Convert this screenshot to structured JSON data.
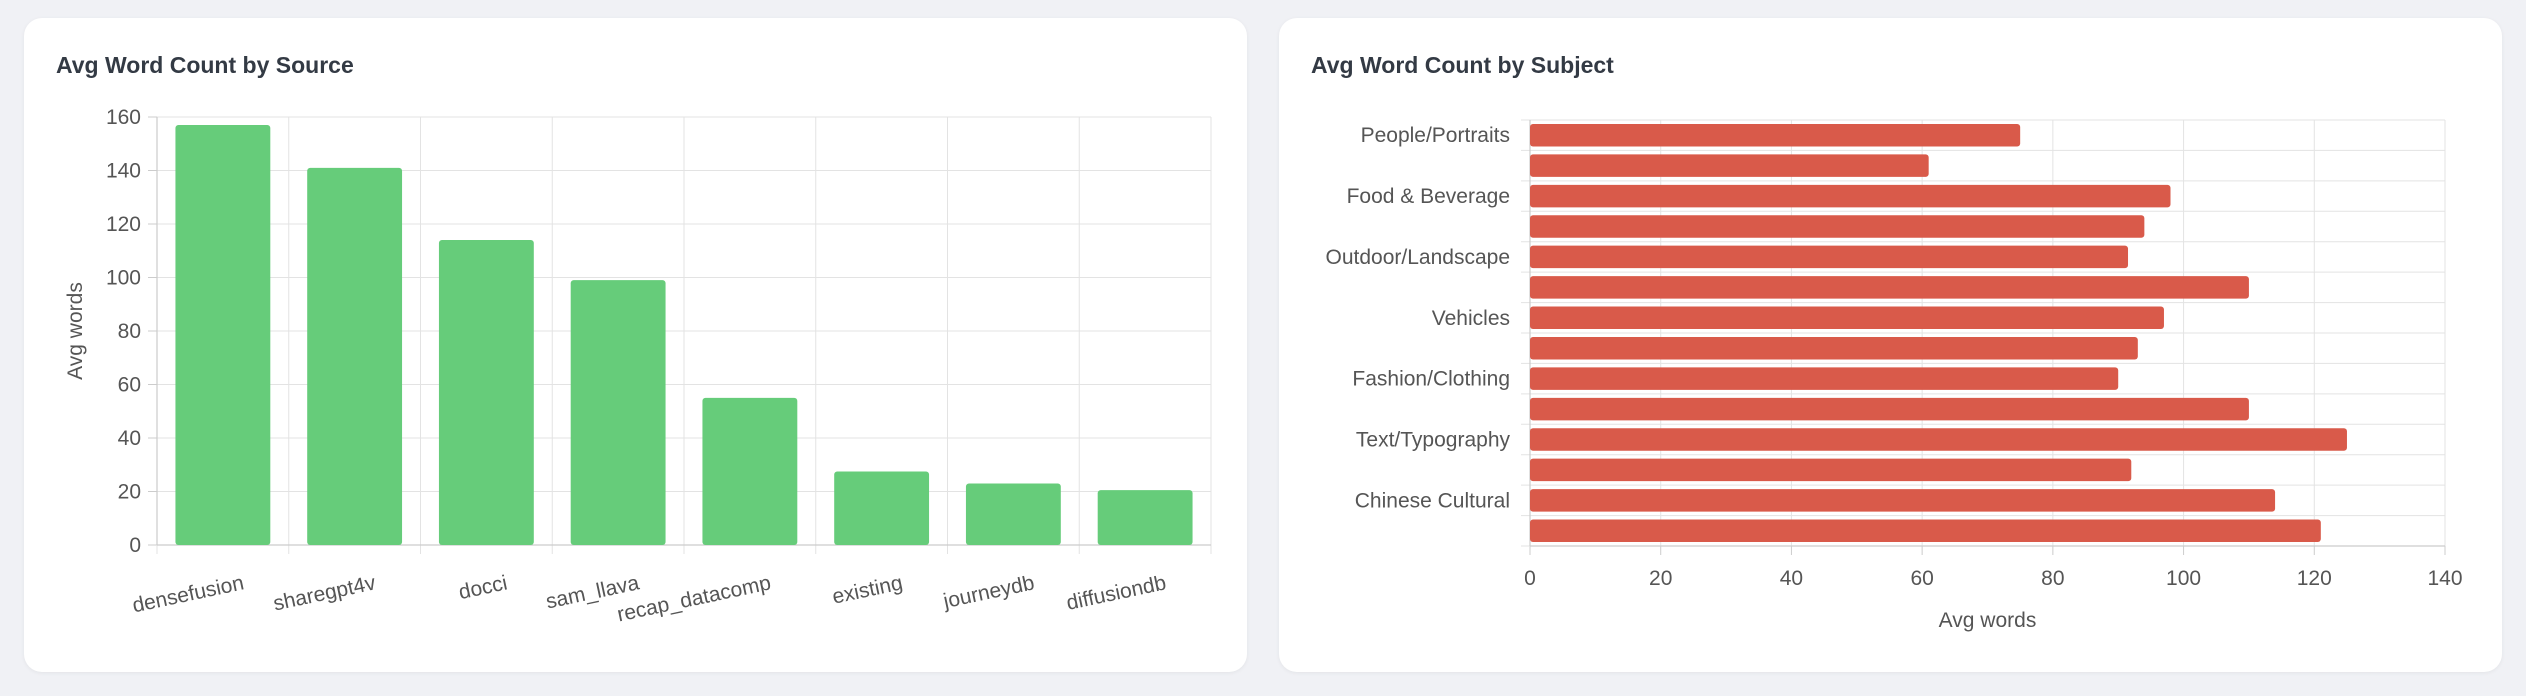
{
  "cards": [
    {
      "title": "Avg Word Count by Source"
    },
    {
      "title": "Avg Word Count by Subject"
    }
  ],
  "chart_data": [
    {
      "type": "bar",
      "title": "Avg Word Count by Source",
      "xlabel": "",
      "ylabel": "Avg words",
      "ylim": [
        0,
        160
      ],
      "yticks": [
        0,
        20,
        40,
        60,
        80,
        100,
        120,
        140,
        160
      ],
      "categories": [
        "densefusion",
        "sharegpt4v",
        "docci",
        "sam_llava",
        "recap_datacomp",
        "existing",
        "journeydb",
        "diffusiondb"
      ],
      "values": [
        157,
        141,
        114,
        99,
        55,
        27.5,
        23,
        20.5
      ],
      "color": "#66cc7a",
      "grid": true
    },
    {
      "type": "bar",
      "orientation": "horizontal",
      "title": "Avg Word Count by Subject",
      "xlabel": "Avg words",
      "ylabel": "",
      "xlim": [
        0,
        140
      ],
      "xticks": [
        0,
        20,
        40,
        60,
        80,
        100,
        120,
        140
      ],
      "categories": [
        "People/Portraits",
        "",
        "Food & Beverage",
        "",
        "Outdoor/Landscape",
        "",
        "Vehicles",
        "",
        "Fashion/Clothing",
        "",
        "Text/Typography",
        "",
        "Chinese Cultural",
        ""
      ],
      "values": [
        75,
        61,
        98,
        94,
        91.5,
        110,
        97,
        93,
        90,
        110,
        125,
        92,
        114,
        121
      ],
      "color": "#d95a4a",
      "grid": true
    }
  ]
}
